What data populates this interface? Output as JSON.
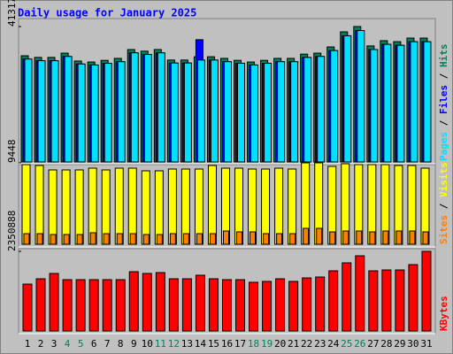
{
  "chart_data": [
    {
      "type": "bar",
      "title": "Daily usage for January 2025",
      "legend_separator": " / ",
      "ylim": [
        0,
        41317
      ],
      "yticks": [
        41317
      ],
      "series": [
        {
          "name": "Hits",
          "color": "#00805c",
          "values": [
            32400,
            31900,
            31900,
            33200,
            30800,
            30500,
            31000,
            31600,
            34300,
            33800,
            34300,
            31100,
            31100,
            32100,
            32100,
            31600,
            31000,
            30500,
            31000,
            31600,
            31600,
            32900,
            33200,
            35100,
            39700,
            41317,
            35400,
            37000,
            36700,
            37800,
            37800
          ]
        },
        {
          "name": "Files",
          "color": "#0000ff",
          "values": [
            31400,
            30900,
            30900,
            32200,
            29900,
            29600,
            30100,
            30600,
            33300,
            32800,
            33300,
            30200,
            30200,
            37300,
            31100,
            30600,
            30100,
            29600,
            30100,
            30600,
            30600,
            31900,
            32200,
            34000,
            38500,
            40100,
            34300,
            35900,
            35600,
            36700,
            36700
          ]
        },
        {
          "name": "Pages",
          "color": "#00e0ff",
          "values": [
            31400,
            30900,
            30900,
            32200,
            29900,
            29600,
            30100,
            30600,
            33300,
            32800,
            33300,
            30200,
            30200,
            31100,
            31100,
            30600,
            30100,
            29600,
            30100,
            30600,
            30600,
            31900,
            32200,
            34000,
            38500,
            40100,
            34300,
            35900,
            35600,
            36700,
            36700
          ]
        }
      ]
    },
    {
      "type": "bar",
      "legend_separator": " / ",
      "ylim": [
        0,
        9448
      ],
      "yticks": [
        9448
      ],
      "series": [
        {
          "name": "Visits",
          "color": "#ffff00",
          "values": [
            9243,
            9140,
            8626,
            8626,
            8626,
            8832,
            8626,
            8832,
            8832,
            8524,
            8524,
            8729,
            8729,
            8729,
            9140,
            8832,
            8832,
            8729,
            8729,
            8832,
            8729,
            9448,
            9448,
            9037,
            9345,
            9243,
            9243,
            9243,
            9140,
            9140,
            8832
          ]
        },
        {
          "name": "Sites",
          "color": "#ff8000",
          "values": [
            1232,
            1232,
            1130,
            1130,
            1130,
            1335,
            1232,
            1232,
            1232,
            1130,
            1130,
            1232,
            1232,
            1232,
            1232,
            1540,
            1438,
            1438,
            1232,
            1232,
            1232,
            1849,
            1849,
            1438,
            1540,
            1540,
            1438,
            1540,
            1540,
            1540,
            1438
          ]
        }
      ]
    },
    {
      "type": "bar",
      "ylim": [
        0,
        2350888
      ],
      "yticks": [
        2350888
      ],
      "categories": [
        "1",
        "2",
        "3",
        "4",
        "5",
        "6",
        "7",
        "8",
        "9",
        "10",
        "11",
        "12",
        "13",
        "14",
        "15",
        "16",
        "17",
        "18",
        "19",
        "20",
        "21",
        "22",
        "23",
        "24",
        "25",
        "26",
        "27",
        "28",
        "29",
        "30",
        "31"
      ],
      "category_colors": [
        "#000000",
        "#000000",
        "#000000",
        "#00805c",
        "#00805c",
        "#000000",
        "#000000",
        "#000000",
        "#000000",
        "#000000",
        "#00805c",
        "#00805c",
        "#000000",
        "#000000",
        "#000000",
        "#000000",
        "#000000",
        "#00805c",
        "#00805c",
        "#000000",
        "#000000",
        "#000000",
        "#000000",
        "#000000",
        "#00805c",
        "#00805c",
        "#000000",
        "#000000",
        "#000000",
        "#000000",
        "#000000"
      ],
      "series": [
        {
          "name": "KBytes",
          "color": "#ff0000",
          "values": [
            1384000,
            1541000,
            1698000,
            1515000,
            1515000,
            1515000,
            1515000,
            1515000,
            1750000,
            1698000,
            1724000,
            1541000,
            1541000,
            1646000,
            1541000,
            1515000,
            1515000,
            1437000,
            1463000,
            1541000,
            1463000,
            1567000,
            1593000,
            1776000,
            2011000,
            2220000,
            1776000,
            1802000,
            1802000,
            1959000,
            2350888
          ]
        }
      ]
    }
  ]
}
